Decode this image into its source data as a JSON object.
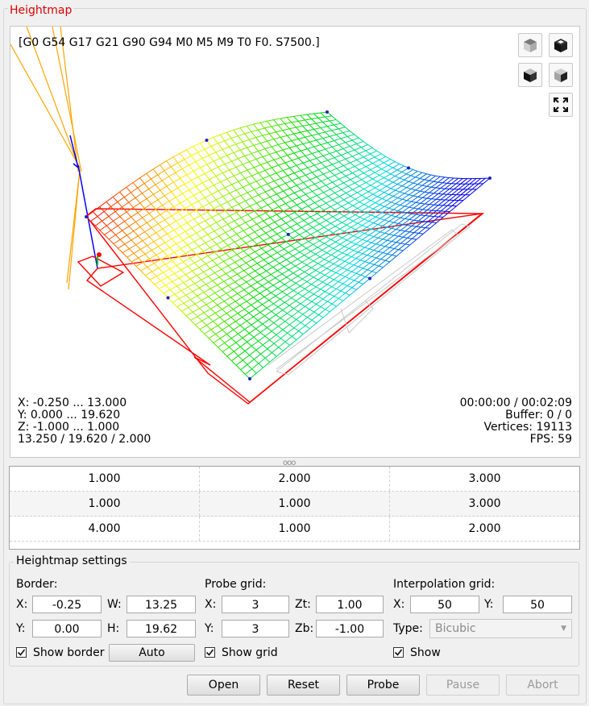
{
  "group_title": "Heightmap",
  "viewport": {
    "gcode_state": "[G0 G54 G17 G21 G90 G94 M0 M5 M9 T0 F0. S7500.]",
    "info_left": [
      "X: -0.250 ... 13.000",
      "Y: 0.000 ... 19.620",
      "Z: -1.000 ... 1.000",
      "13.250 / 19.620 / 2.000"
    ],
    "time": "00:00:00 / 00:02:09",
    "buffer": "Buffer: 0 / 0",
    "vertices": "Vertices: 19113",
    "fps": "FPS: 59",
    "view_buttons": [
      "view-top-icon",
      "view-front-icon",
      "view-left-icon",
      "view-isometric-icon",
      "fit-view-icon"
    ]
  },
  "splitter": "ooo",
  "table": {
    "rows": [
      [
        "1.000",
        "2.000",
        "3.000"
      ],
      [
        "1.000",
        "1.000",
        "3.000"
      ],
      [
        "4.000",
        "1.000",
        "2.000"
      ]
    ]
  },
  "settings": {
    "title": "Heightmap settings",
    "border": {
      "label": "Border:",
      "x_label": "X:",
      "x": "-0.25",
      "w_label": "W:",
      "w": "13.25",
      "y_label": "Y:",
      "y": "0.00",
      "h_label": "H:",
      "h": "19.62",
      "show_label": "Show border",
      "show_checked": true,
      "auto_label": "Auto"
    },
    "probe": {
      "label": "Probe grid:",
      "x_label": "X:",
      "x": "3",
      "zt_label": "Zt:",
      "zt": "1.00",
      "y_label": "Y:",
      "y": "3",
      "zb_label": "Zb:",
      "zb": "-1.00",
      "show_label": "Show grid",
      "show_checked": true
    },
    "interp": {
      "label": "Interpolation grid:",
      "x_label": "X:",
      "x": "50",
      "y_label": "Y:",
      "y": "50",
      "type_label": "Type:",
      "type": "Bicubic",
      "show_label": "Show",
      "show_checked": true
    }
  },
  "buttons": {
    "open": "Open",
    "reset": "Reset",
    "probe": "Probe",
    "pause": "Pause",
    "abort": "Abort"
  },
  "colors": {
    "title": "#e00000",
    "border_rect": "#ff0000",
    "tool_lines": "#ffa500"
  }
}
